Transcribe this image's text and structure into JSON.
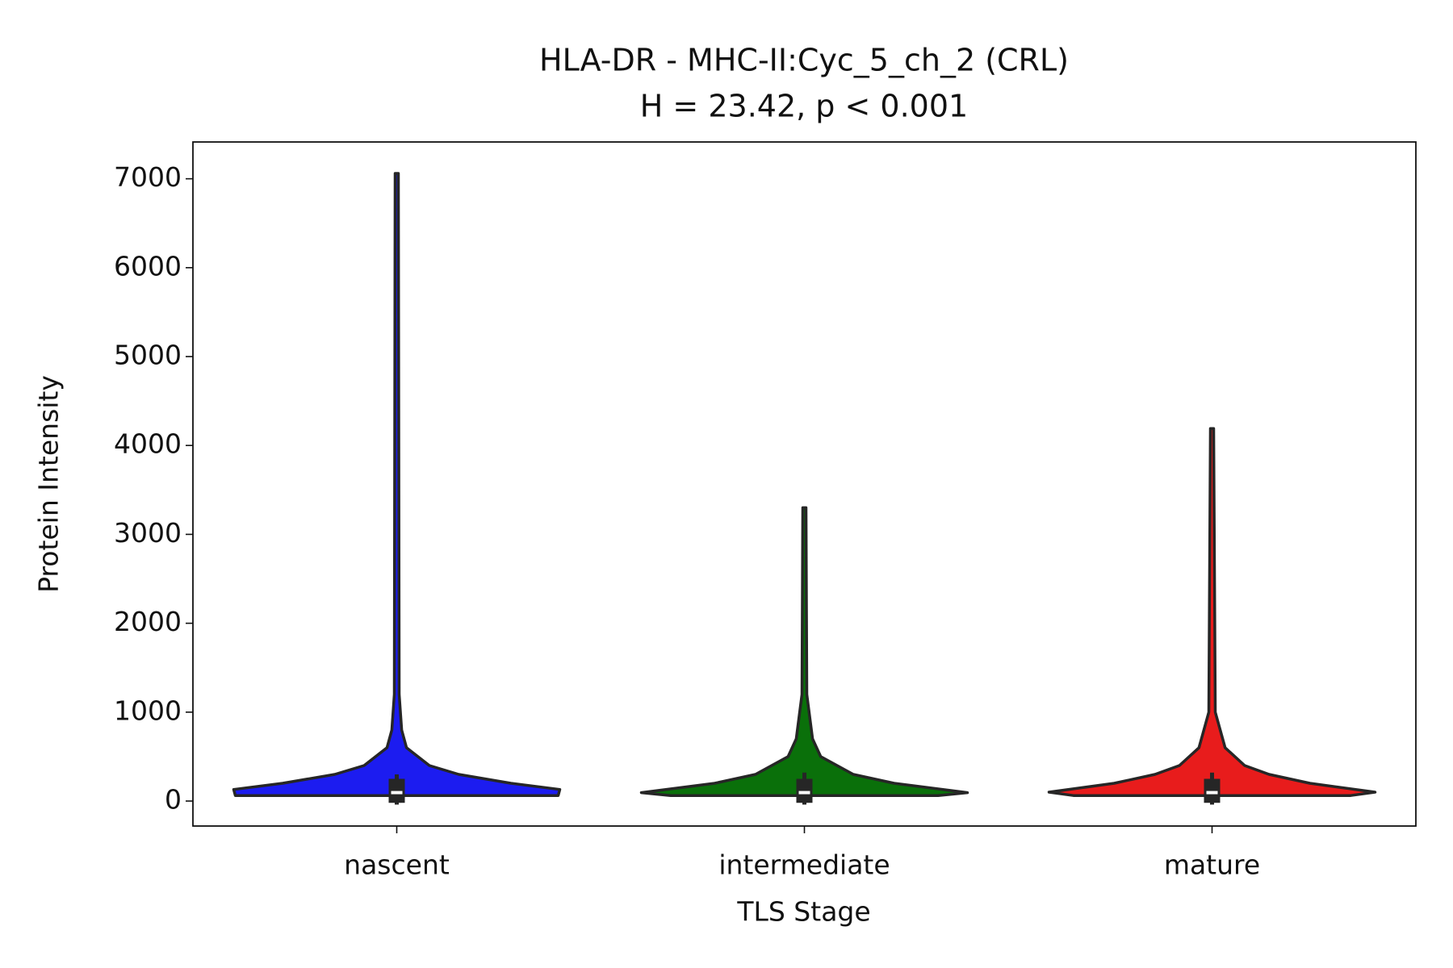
{
  "chart_data": {
    "type": "violin",
    "title": "HLA-DR - MHC-II:Cyc_5_ch_2 (CRL)",
    "subtitle": "H = 23.42, p < 0.001",
    "x_label": "TLS Stage",
    "y_label": "Protein Intensity",
    "ylim": [
      -281,
      7414
    ],
    "yticks": [
      0,
      1000,
      2000,
      3000,
      4000,
      5000,
      6000,
      7000
    ],
    "edge_color": "#262626",
    "groups": [
      {
        "name": "nascent",
        "color": "#1c1cf0",
        "density": {
          "values": [
            62,
            130,
            200,
            300,
            400,
            600,
            800,
            1200,
            7060
          ],
          "widths": [
            0.99,
            1.0,
            0.7,
            0.38,
            0.2,
            0.06,
            0.03,
            0.015,
            0.01
          ]
        },
        "whisker_low": -40,
        "q1": -20,
        "median": 95,
        "q3": 250,
        "whisker_high": 300
      },
      {
        "name": "intermediate",
        "color": "#0a700a",
        "density": {
          "values": [
            62,
            95,
            200,
            300,
            500,
            700,
            1200,
            3300
          ],
          "widths": [
            0.82,
            1.0,
            0.55,
            0.3,
            0.1,
            0.05,
            0.015,
            0.01
          ]
        },
        "whisker_low": -40,
        "q1": -20,
        "median": 95,
        "q3": 250,
        "whisker_high": 320
      },
      {
        "name": "mature",
        "color": "#e81c1c",
        "density": {
          "values": [
            62,
            100,
            200,
            300,
            400,
            600,
            1000,
            4190
          ],
          "widths": [
            0.85,
            1.0,
            0.6,
            0.35,
            0.2,
            0.08,
            0.02,
            0.01
          ]
        },
        "whisker_low": -40,
        "q1": -20,
        "median": 95,
        "q3": 250,
        "whisker_high": 320
      }
    ]
  }
}
